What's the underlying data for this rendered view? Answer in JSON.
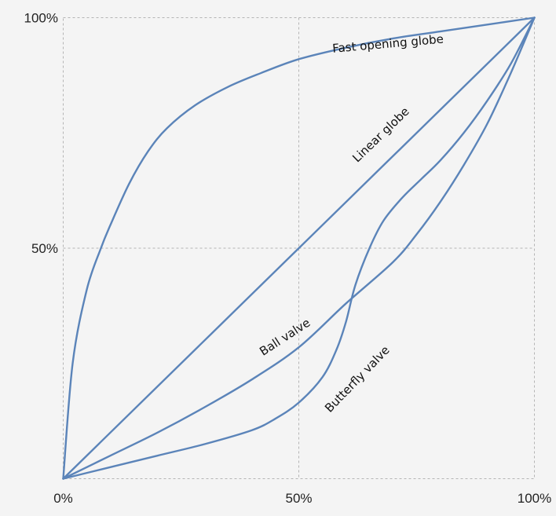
{
  "chart_data": {
    "type": "line",
    "title": "",
    "xlabel": "",
    "ylabel": "",
    "xlim": [
      0,
      100
    ],
    "ylim": [
      0,
      100
    ],
    "x_ticks": [
      "0%",
      "50%",
      "100%"
    ],
    "y_ticks": [
      "50%",
      "100%"
    ],
    "grid": true,
    "line_color": "#5b84b9",
    "series": [
      {
        "name": "Fast opening globe",
        "x": [
          0,
          2,
          5,
          8,
          10,
          14,
          18,
          22,
          28,
          35,
          42,
          50,
          60,
          70,
          80,
          90,
          100
        ],
        "y": [
          0,
          25,
          41,
          50,
          55,
          64,
          71,
          76,
          81,
          85,
          88,
          91,
          93.5,
          95.5,
          97,
          98.5,
          100
        ]
      },
      {
        "name": "Linear globe",
        "x": [
          0,
          50,
          100
        ],
        "y": [
          0,
          50,
          100
        ]
      },
      {
        "name": "Ball valve",
        "x": [
          0,
          10,
          20,
          30,
          40,
          50,
          60,
          70,
          75,
          80,
          85,
          90,
          95,
          100
        ],
        "y": [
          0,
          5,
          10,
          15.5,
          21.5,
          28.5,
          38,
          47,
          53,
          60,
          68,
          77,
          88,
          100
        ]
      },
      {
        "name": "Butterfly valve",
        "x": [
          0,
          10,
          20,
          30,
          40,
          45,
          50,
          55,
          58,
          60,
          62,
          65,
          68,
          72,
          76,
          80,
          85,
          90,
          95,
          100
        ],
        "y": [
          0,
          2.5,
          5,
          7.5,
          10.5,
          13,
          16.5,
          22,
          28,
          34,
          42,
          50,
          56,
          61,
          65,
          69,
          75,
          82,
          90,
          100
        ]
      }
    ],
    "annotations": [
      {
        "text": "Fast opening globe",
        "series": "Fast opening globe",
        "x": 69,
        "y": 93.5,
        "angle_deg": -5
      },
      {
        "text": "Linear globe",
        "series": "Linear globe",
        "x": 68,
        "y": 74,
        "angle_deg": -44
      },
      {
        "text": "Ball valve",
        "series": "Ball valve",
        "x": 47.5,
        "y": 30,
        "angle_deg": -33
      },
      {
        "text": "Butterfly valve",
        "series": "Butterfly valve",
        "x": 63,
        "y": 21,
        "angle_deg": -46
      }
    ]
  }
}
